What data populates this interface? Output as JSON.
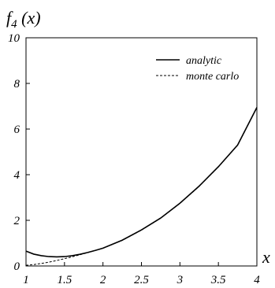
{
  "chart_data": {
    "type": "line",
    "title_main": "f",
    "title_sub": "4",
    "title_arg": " (x)",
    "xlabel": "x",
    "xlim": [
      1,
      4
    ],
    "ylim": [
      0,
      10
    ],
    "xticks": [
      "1",
      "1.5",
      "2",
      "2.5",
      "3",
      "3.5",
      "4"
    ],
    "yticks": [
      "0",
      "2",
      "4",
      "6",
      "8",
      "10"
    ],
    "grid": false,
    "legend_position": "top-right",
    "series": [
      {
        "name": "analytic",
        "style": "solid",
        "x": [
          1.0,
          1.1,
          1.2,
          1.3,
          1.4,
          1.5,
          1.6,
          1.7,
          1.8,
          1.9,
          2.0,
          2.25,
          2.5,
          2.75,
          3.0,
          3.25,
          3.5,
          3.75,
          4.0
        ],
        "y": [
          0.65,
          0.52,
          0.45,
          0.41,
          0.4,
          0.41,
          0.45,
          0.51,
          0.59,
          0.68,
          0.78,
          1.13,
          1.58,
          2.1,
          2.75,
          3.5,
          4.35,
          5.3,
          6.95
        ]
      },
      {
        "name": "monte carlo",
        "style": "dashed",
        "x": [
          1.0,
          1.1,
          1.2,
          1.3,
          1.4,
          1.5,
          1.6,
          1.7,
          1.8,
          1.9,
          2.0,
          2.25,
          2.5,
          2.75,
          3.0,
          3.25,
          3.5,
          3.75,
          4.0
        ],
        "y": [
          0.03,
          0.06,
          0.11,
          0.17,
          0.24,
          0.32,
          0.4,
          0.49,
          0.58,
          0.68,
          0.78,
          1.12,
          1.57,
          2.09,
          2.74,
          3.49,
          4.34,
          5.29,
          6.94
        ]
      }
    ]
  }
}
